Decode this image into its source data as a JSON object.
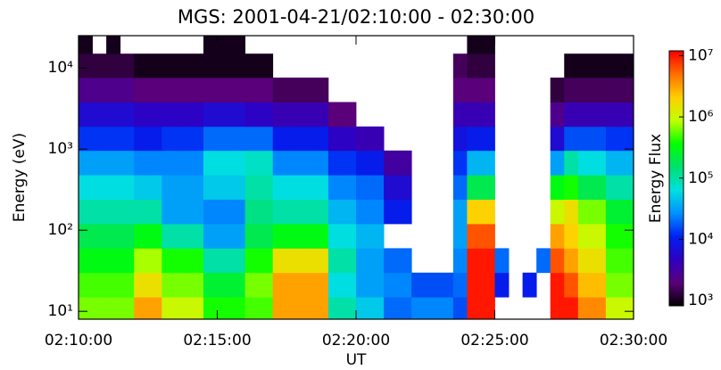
{
  "chart_data": {
    "type": "spectrogram",
    "title": "MGS: 2001-04-21/02:10:00 - 02:30:00",
    "x_label": "UT",
    "y_label": "Energy (eV)",
    "colorbar_label": "Energy Flux",
    "xlim": [
      "02:10:00",
      "02:30:00"
    ],
    "xticks": [
      "02:10:00",
      "02:15:00",
      "02:20:00",
      "02:25:00",
      "02:30:00"
    ],
    "ylim": [
      8,
      25000
    ],
    "y_log": true,
    "yticks": [
      {
        "value": 10,
        "label": "10¹"
      },
      {
        "value": 100,
        "label": "10²"
      },
      {
        "value": 1000,
        "label": "10³"
      },
      {
        "value": 10000,
        "label": "10⁴"
      }
    ],
    "clim": [
      820,
      12000000
    ],
    "c_log": true,
    "cticks": [
      {
        "value": 1000,
        "label": "10³"
      },
      {
        "value": 10000,
        "label": "10⁴"
      },
      {
        "value": 100000,
        "label": "10⁵"
      },
      {
        "value": 1000000,
        "label": "10⁶"
      },
      {
        "value": 10000000,
        "label": "10⁷"
      }
    ],
    "colormap": [
      "#000000",
      "#5a0078",
      "#3000c0",
      "#0020f0",
      "#0090ff",
      "#00e0e0",
      "#00e070",
      "#00ff00",
      "#c0ff00",
      "#ffd000",
      "#ff7000",
      "#ff0000"
    ],
    "xbins": [
      "02:10:00",
      "02:10:30",
      "02:11:00",
      "02:11:30",
      "02:12:00",
      "02:12:30",
      "02:13:00",
      "02:13:30",
      "02:14:00",
      "02:14:30",
      "02:15:00",
      "02:15:30",
      "02:16:00",
      "02:16:30",
      "02:17:00",
      "02:17:30",
      "02:18:00",
      "02:18:30",
      "02:19:00",
      "02:19:30",
      "02:20:00",
      "02:20:30",
      "02:21:00",
      "02:21:30",
      "02:22:00",
      "02:22:30",
      "02:23:00",
      "02:23:30",
      "02:24:00",
      "02:24:30",
      "02:25:00",
      "02:25:30",
      "02:26:00",
      "02:26:30",
      "02:27:00",
      "02:27:30",
      "02:28:00",
      "02:28:30",
      "02:29:00",
      "02:29:30",
      "02:30:00"
    ],
    "ybins": [
      8,
      15,
      30,
      60,
      120,
      240,
      480,
      960,
      1900,
      3800,
      7600,
      15000,
      25000
    ],
    "z": [
      [
        630000.0,
        630000.0,
        630000.0,
        630000.0,
        3200000.0,
        3200000.0,
        1000000.0,
        1000000.0,
        1000000.0,
        400000.0,
        400000.0,
        400000.0,
        500000.0,
        500000.0,
        3200000.0,
        3200000.0,
        3200000.0,
        3200000.0,
        100000.0,
        100000.0,
        50000.0,
        50000.0,
        20000.0,
        20000.0,
        25000.0,
        25000.0,
        25000.0,
        16000.0,
        10000000.0,
        10000000.0,
        null,
        null,
        null,
        null,
        10000000.0,
        10000000.0,
        4000000.0,
        4000000.0,
        1000000.0,
        1000000.0
      ],
      [
        500000.0,
        500000.0,
        500000.0,
        500000.0,
        1600000.0,
        1600000.0,
        630000.0,
        630000.0,
        630000.0,
        250000.0,
        250000.0,
        250000.0,
        630000.0,
        630000.0,
        3200000.0,
        3200000.0,
        3200000.0,
        3200000.0,
        63000.0,
        63000.0,
        32000.0,
        32000.0,
        25000.0,
        25000.0,
        16000.0,
        16000.0,
        16000.0,
        20000.0,
        10000000.0,
        10000000.0,
        10000.0,
        null,
        10000.0,
        null,
        10000000.0,
        6300000.0,
        2500000.0,
        2500000.0,
        630000.0,
        630000.0
      ],
      [
        320000.0,
        320000.0,
        320000.0,
        320000.0,
        790000.0,
        790000.0,
        400000.0,
        400000.0,
        400000.0,
        100000.0,
        100000.0,
        100000.0,
        400000.0,
        400000.0,
        1600000.0,
        1600000.0,
        1600000.0,
        1600000.0,
        100000.0,
        100000.0,
        32000.0,
        32000.0,
        20000.0,
        20000.0,
        null,
        null,
        null,
        25000.0,
        10000000.0,
        10000000.0,
        20000.0,
        null,
        null,
        20000.0,
        6300000.0,
        3200000.0,
        1600000.0,
        1600000.0,
        500000.0,
        500000.0
      ],
      [
        200000.0,
        200000.0,
        200000.0,
        200000.0,
        320000.0,
        320000.0,
        100000.0,
        100000.0,
        100000.0,
        32000.0,
        32000.0,
        32000.0,
        200000.0,
        200000.0,
        320000.0,
        320000.0,
        320000.0,
        320000.0,
        63000.0,
        63000.0,
        40000.0,
        40000.0,
        null,
        null,
        null,
        null,
        null,
        32000.0,
        6300000.0,
        6300000.0,
        null,
        null,
        null,
        null,
        3200000.0,
        2000000.0,
        1000000.0,
        1000000.0,
        400000.0,
        400000.0
      ],
      [
        100000.0,
        100000.0,
        100000.0,
        100000.0,
        100000.0,
        100000.0,
        32000.0,
        32000.0,
        32000.0,
        25000.0,
        25000.0,
        25000.0,
        130000.0,
        130000.0,
        100000.0,
        100000.0,
        100000.0,
        100000.0,
        40000.0,
        40000.0,
        25000.0,
        25000.0,
        10000.0,
        10000.0,
        null,
        null,
        null,
        32000.0,
        2000000.0,
        2000000.0,
        null,
        null,
        null,
        null,
        1000000.0,
        1600000.0,
        630000.0,
        630000.0,
        250000.0,
        250000.0
      ],
      [
        63000.0,
        63000.0,
        63000.0,
        63000.0,
        50000.0,
        50000.0,
        32000.0,
        32000.0,
        32000.0,
        50000.0,
        50000.0,
        50000.0,
        100000.0,
        100000.0,
        63000.0,
        63000.0,
        63000.0,
        63000.0,
        25000.0,
        25000.0,
        20000.0,
        20000.0,
        6300.0,
        6300.0,
        null,
        null,
        null,
        20000.0,
        200000.0,
        200000.0,
        null,
        null,
        null,
        null,
        320000.0,
        400000.0,
        200000.0,
        200000.0,
        100000.0,
        100000.0
      ],
      [
        32000.0,
        32000.0,
        32000.0,
        32000.0,
        25000.0,
        25000.0,
        25000.0,
        25000.0,
        25000.0,
        63000.0,
        63000.0,
        63000.0,
        79000.0,
        79000.0,
        25000.0,
        25000.0,
        25000.0,
        25000.0,
        13000.0,
        13000.0,
        10000.0,
        10000.0,
        3200.0,
        3200.0,
        null,
        null,
        null,
        13000.0,
        40000.0,
        40000.0,
        null,
        null,
        null,
        null,
        32000.0,
        100000.0,
        63000.0,
        63000.0,
        40000.0,
        40000.0
      ],
      [
        13000.0,
        13000.0,
        13000.0,
        13000.0,
        10000.0,
        10000.0,
        13000.0,
        13000.0,
        13000.0,
        20000.0,
        20000.0,
        20000.0,
        20000.0,
        20000.0,
        10000.0,
        10000.0,
        10000.0,
        10000.0,
        5000.0,
        5000.0,
        4000.0,
        4000.0,
        null,
        null,
        null,
        null,
        null,
        7900.0,
        10000.0,
        10000.0,
        null,
        null,
        null,
        null,
        6300.0,
        16000.0,
        16000.0,
        16000.0,
        13000.0,
        13000.0
      ],
      [
        6300.0,
        6300.0,
        6300.0,
        6300.0,
        5000.0,
        5000.0,
        5000.0,
        5000.0,
        5000.0,
        6300.0,
        6300.0,
        6300.0,
        5000.0,
        5000.0,
        4000.0,
        4000.0,
        4000.0,
        4000.0,
        2000.0,
        2000.0,
        null,
        null,
        null,
        null,
        null,
        null,
        null,
        4000.0,
        4000.0,
        4000.0,
        null,
        null,
        null,
        null,
        2500.0,
        4000.0,
        4000.0,
        4000.0,
        4000.0,
        4000.0
      ],
      [
        2500.0,
        2500.0,
        2500.0,
        2500.0,
        2000.0,
        2000.0,
        2000.0,
        2000.0,
        2000.0,
        2000.0,
        2000.0,
        2000.0,
        2000.0,
        2000.0,
        1600.0,
        1600.0,
        1600.0,
        1600.0,
        null,
        null,
        null,
        null,
        null,
        null,
        null,
        null,
        null,
        2000.0,
        2000.0,
        2000.0,
        null,
        null,
        null,
        null,
        1300.0,
        1600.0,
        1600.0,
        1600.0,
        1600.0,
        1600.0
      ],
      [
        1300.0,
        1300.0,
        1300.0,
        1300.0,
        1000.0,
        1000.0,
        1000.0,
        1000.0,
        1000.0,
        1000.0,
        1000.0,
        1000.0,
        1000.0,
        1000.0,
        null,
        null,
        null,
        null,
        null,
        null,
        null,
        null,
        null,
        null,
        null,
        null,
        null,
        1600.0,
        1300.0,
        1300.0,
        null,
        null,
        null,
        null,
        null,
        1000.0,
        1000.0,
        1000.0,
        1000.0,
        1000.0
      ],
      [
        1000.0,
        null,
        1000.0,
        null,
        null,
        null,
        null,
        null,
        null,
        1000.0,
        1000.0,
        1000.0,
        null,
        null,
        null,
        null,
        null,
        null,
        null,
        null,
        null,
        null,
        null,
        null,
        null,
        null,
        null,
        null,
        1000.0,
        1000.0,
        null,
        null,
        null,
        null,
        null,
        null,
        null,
        null,
        null,
        null
      ]
    ]
  }
}
